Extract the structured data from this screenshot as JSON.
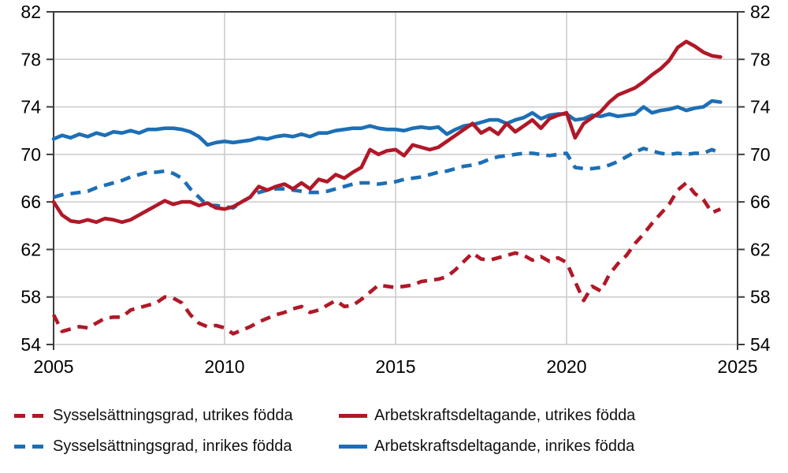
{
  "colors": {
    "red": "#b01828",
    "blue": "#1c6fb6",
    "grid": "#c9c9c9",
    "axis": "#3d3d3d",
    "text": "#000000"
  },
  "chart_data": {
    "type": "line",
    "title": "",
    "xlabel": "",
    "ylabel": "",
    "grid": true,
    "legend_position": "bottom",
    "x_axis": {
      "range": [
        2005,
        2025
      ],
      "tick_labels": [
        "2005",
        "2010",
        "2015",
        "2020",
        "2025"
      ],
      "ticks": [
        2005,
        2010,
        2015,
        2020,
        2025
      ],
      "gridline_years": [
        2010,
        2015,
        2020
      ]
    },
    "y_axis": {
      "range": [
        54,
        82
      ],
      "ticks": [
        54,
        58,
        62,
        66,
        70,
        74,
        78,
        82
      ],
      "labels_on_both_sides": true
    },
    "x_start": 2005,
    "x_step": 0.25,
    "series": [
      {
        "name": "Sysselsättningsgrad, utrikes födda",
        "color": "#b01828",
        "style": "dashed",
        "values": [
          56.5,
          55.1,
          55.3,
          55.5,
          55.4,
          55.8,
          56.2,
          56.3,
          56.3,
          56.9,
          57.1,
          57.3,
          57.5,
          58.0,
          57.9,
          57.5,
          56.5,
          55.8,
          55.5,
          55.6,
          55.4,
          54.9,
          55.2,
          55.5,
          55.9,
          56.2,
          56.5,
          56.7,
          57.0,
          57.2,
          56.7,
          56.9,
          57.3,
          57.7,
          57.2,
          57.3,
          57.8,
          58.4,
          59.0,
          58.9,
          58.8,
          58.9,
          59.0,
          59.3,
          59.4,
          59.5,
          59.7,
          60.3,
          61.0,
          61.7,
          61.2,
          61.1,
          61.3,
          61.5,
          61.7,
          61.5,
          61.1,
          61.4,
          61.0,
          61.3,
          60.9,
          59.3,
          57.7,
          58.9,
          58.5,
          59.9,
          60.8,
          61.5,
          62.5,
          63.3,
          64.2,
          65.0,
          65.8,
          67.0,
          67.6,
          66.7,
          66.2,
          65.1,
          65.4
        ]
      },
      {
        "name": "Sysselsättningsgrad, inrikes födda",
        "color": "#1c6fb6",
        "style": "dashed",
        "values": [
          66.4,
          66.6,
          66.7,
          66.8,
          66.9,
          67.2,
          67.4,
          67.6,
          67.8,
          68.1,
          68.3,
          68.5,
          68.5,
          68.6,
          68.4,
          68.0,
          67.1,
          66.4,
          65.7,
          65.7,
          65.6,
          65.5,
          66.0,
          66.4,
          66.8,
          67.0,
          67.1,
          67.1,
          67.0,
          66.9,
          66.8,
          66.8,
          66.9,
          67.1,
          67.3,
          67.5,
          67.6,
          67.6,
          67.5,
          67.6,
          67.7,
          67.9,
          68.0,
          68.1,
          68.3,
          68.5,
          68.6,
          68.8,
          69.0,
          69.1,
          69.3,
          69.6,
          69.8,
          69.9,
          70.0,
          70.1,
          70.1,
          70.0,
          69.9,
          70.0,
          70.1,
          68.9,
          68.8,
          68.8,
          68.9,
          69.1,
          69.4,
          69.8,
          70.2,
          70.5,
          70.3,
          70.1,
          70.0,
          70.1,
          70.0,
          70.1,
          70.1,
          70.4,
          70.1
        ]
      },
      {
        "name": "Arbetskraftsdeltagande, inrikes födda",
        "color": "#1c6fb6",
        "style": "solid",
        "values": [
          71.3,
          71.6,
          71.4,
          71.7,
          71.5,
          71.8,
          71.6,
          71.9,
          71.8,
          72.0,
          71.8,
          72.1,
          72.1,
          72.2,
          72.2,
          72.1,
          71.9,
          71.5,
          70.8,
          71.0,
          71.1,
          71.0,
          71.1,
          71.2,
          71.4,
          71.3,
          71.5,
          71.6,
          71.5,
          71.7,
          71.5,
          71.8,
          71.8,
          72.0,
          72.1,
          72.2,
          72.2,
          72.4,
          72.2,
          72.1,
          72.1,
          72.0,
          72.2,
          72.3,
          72.2,
          72.3,
          71.7,
          72.1,
          72.4,
          72.5,
          72.7,
          72.9,
          72.9,
          72.6,
          72.9,
          73.1,
          73.5,
          73.0,
          73.3,
          73.4,
          73.4,
          72.9,
          73.0,
          73.3,
          73.2,
          73.4,
          73.2,
          73.3,
          73.4,
          74.0,
          73.5,
          73.7,
          73.8,
          74.0,
          73.7,
          73.9,
          74.0,
          74.5,
          74.4
        ]
      },
      {
        "name": "Arbetskraftsdeltagande, utrikes födda",
        "color": "#b01828",
        "style": "solid",
        "values": [
          66.0,
          64.9,
          64.4,
          64.3,
          64.5,
          64.3,
          64.6,
          64.5,
          64.3,
          64.5,
          64.9,
          65.3,
          65.7,
          66.1,
          65.8,
          66.0,
          66.0,
          65.7,
          65.9,
          65.5,
          65.4,
          65.6,
          66.0,
          66.4,
          67.3,
          67.0,
          67.3,
          67.5,
          67.1,
          67.6,
          67.1,
          67.9,
          67.7,
          68.3,
          68.0,
          68.5,
          68.9,
          70.4,
          70.0,
          70.3,
          70.4,
          69.9,
          70.8,
          70.6,
          70.4,
          70.6,
          71.1,
          71.6,
          72.1,
          72.6,
          71.8,
          72.2,
          71.7,
          72.6,
          71.9,
          72.4,
          72.9,
          72.2,
          73.0,
          73.3,
          73.5,
          71.4,
          72.6,
          73.1,
          73.6,
          74.4,
          75.0,
          75.3,
          75.6,
          76.1,
          76.7,
          77.2,
          77.9,
          79.0,
          79.5,
          79.1,
          78.6,
          78.3,
          78.2
        ]
      }
    ]
  },
  "legend": {
    "row1_item1": "Sysselsättningsgrad, utrikes födda",
    "row1_item2": "Arbetskraftsdeltagande, utrikes födda",
    "row2_item1": "Sysselsättningsgrad, inrikes födda",
    "row2_item2": "Arbetskraftsdeltagande, inrikes födda"
  }
}
